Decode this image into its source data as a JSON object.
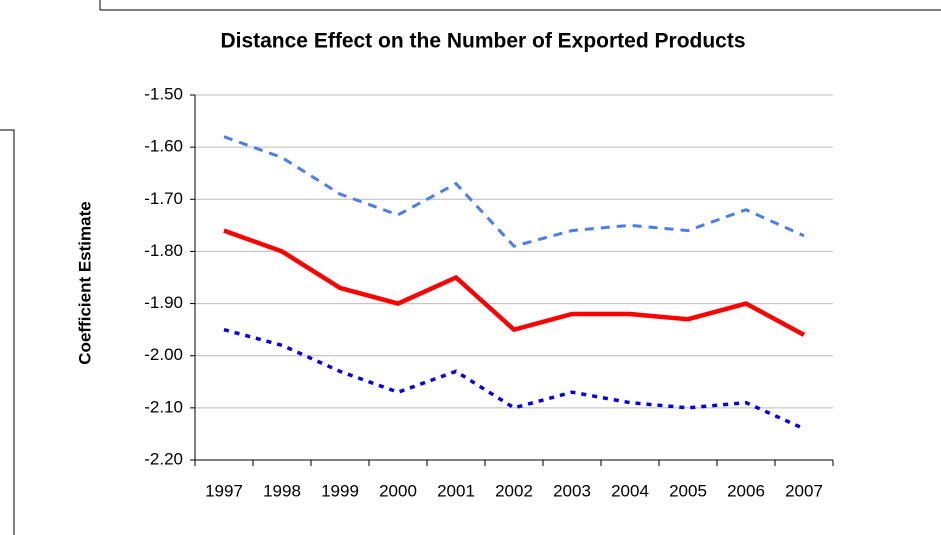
{
  "chart_data": {
    "type": "line",
    "title": "Distance Effect on the Number of Exported Products",
    "y_label": "Coefficient Estimate",
    "categories": [
      "1997",
      "1998",
      "1999",
      "2000",
      "2001",
      "2002",
      "2003",
      "2004",
      "2005",
      "2006",
      "2007"
    ],
    "series": [
      {
        "color": "#4a7fe8",
        "style": "dashed",
        "values": [
          -1.58,
          -1.62,
          -1.69,
          -1.73,
          -1.67,
          -1.79,
          -1.76,
          -1.75,
          -1.76,
          -1.72,
          -1.77
        ]
      },
      {
        "color": "#ff0000",
        "style": "solid",
        "values": [
          -1.76,
          -1.8,
          -1.87,
          -1.9,
          -1.85,
          -1.95,
          -1.92,
          -1.92,
          -1.93,
          -1.9,
          -1.96
        ]
      },
      {
        "color": "#0000ee",
        "style": "dotted",
        "values": [
          -1.95,
          -1.98,
          -2.03,
          -2.07,
          -2.03,
          -2.1,
          -2.07,
          -2.09,
          -2.1,
          -2.09,
          -2.14
        ]
      }
    ],
    "ylim": [
      -2.2,
      -1.5
    ],
    "yticks": [
      {
        "value": -2.2,
        "label": "-2.20"
      },
      {
        "value": -2.1,
        "label": "-2.10"
      },
      {
        "value": -2.0,
        "label": "-2.00"
      },
      {
        "value": -1.9,
        "label": "-1.90"
      },
      {
        "value": -1.8,
        "label": "-1.80"
      },
      {
        "value": -1.7,
        "label": "-1.70"
      },
      {
        "value": -1.6,
        "label": "-1.60"
      },
      {
        "value": -1.5,
        "label": "-1.50"
      }
    ],
    "grid": true
  }
}
